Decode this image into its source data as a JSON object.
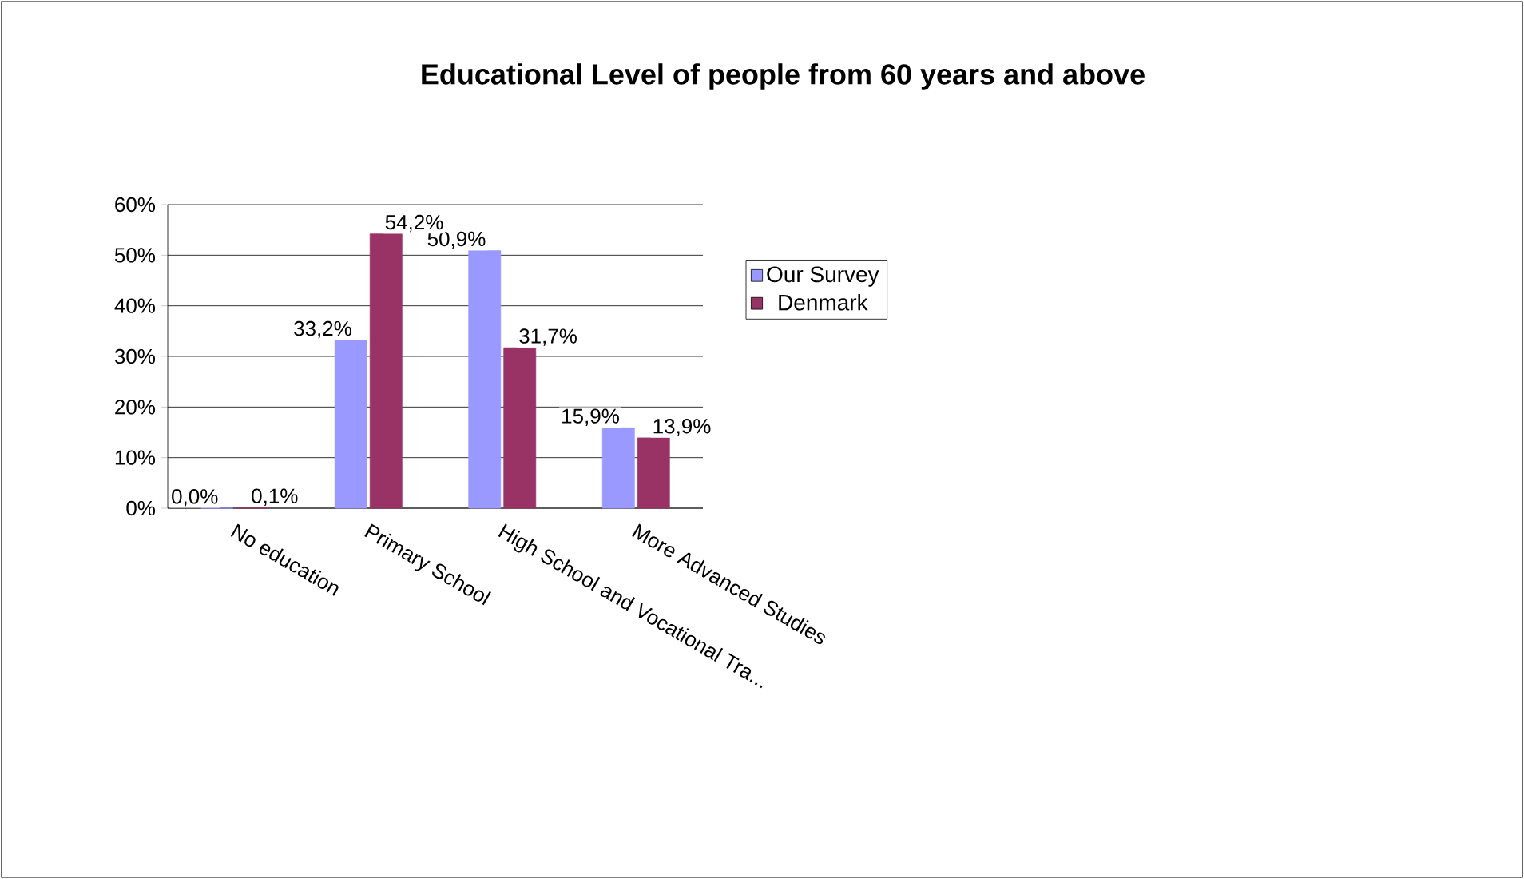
{
  "chart_data": {
    "type": "bar",
    "title": "Educational Level of people from 60 years and above",
    "categories": [
      "No education",
      "Primary School",
      "High School and Vocational Tra...",
      "More Advanced Studies"
    ],
    "series": [
      {
        "name": "Our Survey",
        "color": "#9999ff",
        "values": [
          0.0,
          33.2,
          50.9,
          15.9
        ],
        "value_labels": [
          "0,0%",
          "33,2%",
          "50,9%",
          "15,9%"
        ]
      },
      {
        "name": "Denmark",
        "color": "#993366",
        "values": [
          0.1,
          54.2,
          31.7,
          13.9
        ],
        "value_labels": [
          "0,1%",
          "54,2%",
          "31,7%",
          "13,9%"
        ]
      }
    ],
    "ylim": [
      0,
      60
    ],
    "yticks": [
      {
        "value": 0,
        "label": "0%"
      },
      {
        "value": 10,
        "label": "10%"
      },
      {
        "value": 20,
        "label": "20%"
      },
      {
        "value": 30,
        "label": "30%"
      },
      {
        "value": 40,
        "label": "40%"
      },
      {
        "value": 50,
        "label": "50%"
      },
      {
        "value": 60,
        "label": "60%"
      }
    ],
    "grid": "y",
    "legend": "right"
  }
}
